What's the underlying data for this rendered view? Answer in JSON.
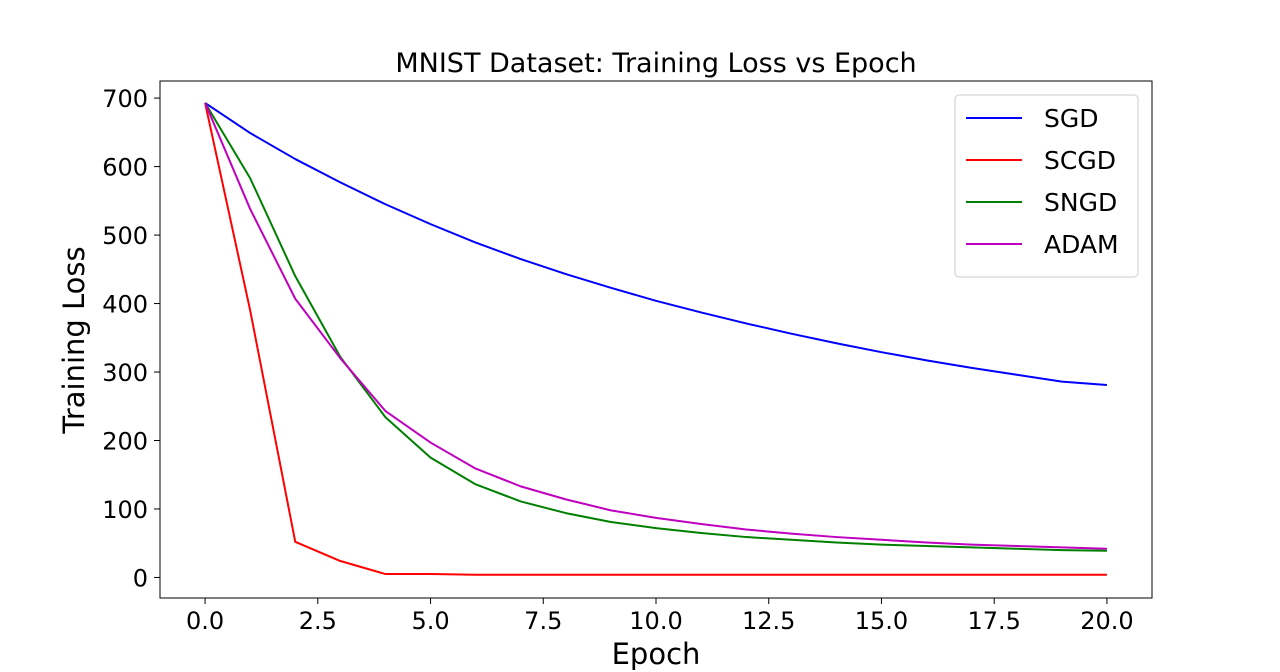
{
  "chart_data": {
    "type": "line",
    "title": "MNIST Dataset:  Training Loss vs Epoch",
    "xlabel": "Epoch",
    "ylabel": "Training Loss",
    "xlim": [
      -1,
      21
    ],
    "ylim": [
      -30,
      725
    ],
    "xticks": [
      0.0,
      2.5,
      5.0,
      7.5,
      10.0,
      12.5,
      15.0,
      17.5,
      20.0
    ],
    "xtick_labels": [
      "0.0",
      "2.5",
      "5.0",
      "7.5",
      "10.0",
      "12.5",
      "15.0",
      "17.5",
      "20.0"
    ],
    "yticks": [
      0,
      100,
      200,
      300,
      400,
      500,
      600,
      700
    ],
    "ytick_labels": [
      "0",
      "100",
      "200",
      "300",
      "400",
      "500",
      "600",
      "700"
    ],
    "grid": false,
    "legend_position": "top-right",
    "x": [
      0,
      1,
      2,
      3,
      4,
      5,
      6,
      7,
      8,
      9,
      10,
      11,
      12,
      13,
      14,
      15,
      16,
      17,
      18,
      19,
      20
    ],
    "series": [
      {
        "name": "SGD",
        "color": "#0000ff",
        "values": [
          693,
          649,
          611,
          577,
          545,
          516,
          489,
          465,
          443,
          423,
          404,
          387,
          371,
          356,
          342,
          329,
          317,
          306,
          296,
          286,
          281
        ]
      },
      {
        "name": "SCGD",
        "color": "#ff0000",
        "values": [
          693,
          390,
          52,
          24,
          5,
          5,
          4,
          4,
          4,
          4,
          4,
          4,
          4,
          4,
          4,
          4,
          4,
          4,
          4,
          4,
          4
        ]
      },
      {
        "name": "SNGD",
        "color": "#008000",
        "values": [
          693,
          583,
          440,
          322,
          234,
          175,
          136,
          111,
          94,
          81,
          72,
          65,
          59,
          55,
          51,
          48,
          46,
          44,
          42,
          40,
          39
        ]
      },
      {
        "name": "ADAM",
        "color": "#bf00bf",
        "values": [
          693,
          538,
          407,
          320,
          243,
          197,
          159,
          133,
          114,
          98,
          87,
          78,
          70,
          64,
          59,
          55,
          51,
          48,
          46,
          44,
          42
        ]
      }
    ]
  }
}
